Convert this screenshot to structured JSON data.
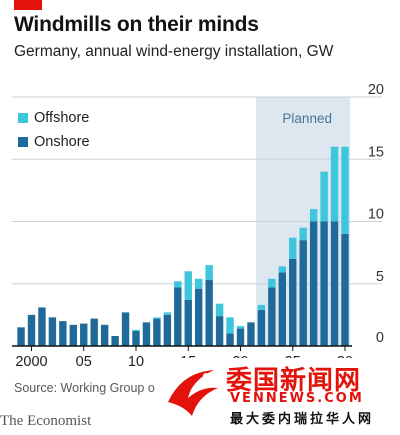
{
  "header": {
    "title": "Windmills on their minds",
    "subtitle": "Germany, annual wind-energy installation, GW"
  },
  "source": "Source: Working Group o",
  "brand": "The Economist",
  "watermark": {
    "top": "委国新闻网",
    "mid": "VENNEWS.COM",
    "bottom": "最大委内瑞拉华人网"
  },
  "colors": {
    "onshore": "#1f6a9b",
    "offshore": "#3ec6dd",
    "planned_band": "#dde7ef",
    "accent_red": "#e3120b",
    "axis": "#121212",
    "grid": "#c9d3da"
  },
  "chart_data": {
    "type": "bar",
    "stacked": true,
    "title": "Windmills on their minds",
    "subtitle": "Germany, annual wind-energy installation, GW",
    "x": [
      1999,
      2000,
      2001,
      2002,
      2003,
      2004,
      2005,
      2006,
      2007,
      2008,
      2009,
      2010,
      2011,
      2012,
      2013,
      2014,
      2015,
      2016,
      2017,
      2018,
      2019,
      2020,
      2021,
      2022,
      2023,
      2024,
      2025,
      2026,
      2027,
      2028,
      2029,
      2030
    ],
    "x_tick_labels": [
      {
        "year": 2000,
        "label": "2000"
      },
      {
        "year": 2005,
        "label": "05"
      },
      {
        "year": 2010,
        "label": "10"
      },
      {
        "year": 2015,
        "label": "15"
      },
      {
        "year": 2020,
        "label": "20"
      },
      {
        "year": 2025,
        "label": "25"
      },
      {
        "year": 2030,
        "label": "30"
      }
    ],
    "series": [
      {
        "name": "Onshore",
        "values": [
          1.5,
          2.5,
          3.1,
          2.3,
          2.0,
          1.7,
          1.8,
          2.2,
          1.7,
          0.8,
          2.7,
          1.2,
          1.9,
          2.2,
          2.5,
          4.7,
          3.7,
          4.6,
          5.3,
          2.4,
          1.0,
          1.4,
          1.9,
          2.9,
          4.7,
          5.9,
          7.0,
          8.5,
          10.0,
          10.0,
          10.0,
          9.0
        ]
      },
      {
        "name": "Offshore",
        "values": [
          0,
          0,
          0,
          0,
          0,
          0,
          0,
          0,
          0,
          0,
          0,
          0.1,
          0,
          0.1,
          0.2,
          0.5,
          2.3,
          0.8,
          1.2,
          1.0,
          1.3,
          0.2,
          0,
          0.4,
          0.7,
          0.5,
          1.7,
          1.0,
          1.0,
          4.0,
          6.0,
          7.0
        ]
      }
    ],
    "planned_range": [
      2022,
      2030
    ],
    "planned_label": "Planned",
    "ylim": [
      0,
      20
    ],
    "y_ticks": [
      0,
      5,
      10,
      15,
      20
    ],
    "y_axis_side": "right",
    "legend_position": "top-left",
    "grid": true
  }
}
